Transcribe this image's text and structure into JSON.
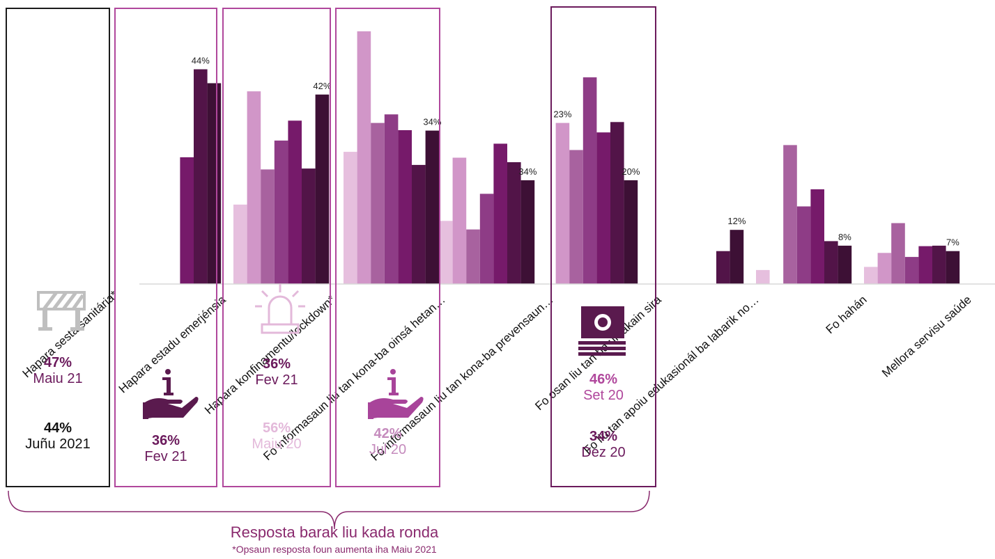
{
  "chart_data": {
    "type": "bar",
    "title": "",
    "xlabel": "",
    "ylabel": "",
    "ylim": [
      0,
      0.56
    ],
    "grid": false,
    "legend": "none",
    "categories": [
      "Hapara sesta sanitária*",
      "Hapara estadu emerjénsia",
      "Hapara konfinamentu/lockdown*",
      "Fo informasaun liu tan kona-ba oinsá hetan…",
      "Fo informasaun liu tan kona-ba prevensaun…",
      "Fo osan liu tan ba umakain sira",
      "Fo liu tan apoiu edukasionál ba labarik no…",
      "Fo hahán",
      "Mellora servisu saúde"
    ],
    "series": [
      {
        "values": [
          null,
          null,
          0.176,
          0.293,
          0.14,
          null,
          null,
          0.031,
          0.038
        ]
      },
      {
        "values": [
          null,
          null,
          0.427,
          0.56,
          0.28,
          0.357,
          null,
          null,
          0.069
        ]
      },
      {
        "values": [
          null,
          null,
          0.254,
          0.357,
          0.121,
          0.297,
          null,
          0.308,
          0.135
        ]
      },
      {
        "values": [
          null,
          null,
          0.318,
          0.376,
          0.2,
          0.458,
          null,
          0.172,
          0.06
        ]
      },
      {
        "values": [
          null,
          0.281,
          0.362,
          0.341,
          0.311,
          0.336,
          null,
          0.21,
          0.084
        ]
      },
      {
        "values": [
          null,
          0.476,
          0.256,
          0.264,
          0.27,
          0.359,
          0.073,
          0.095,
          0.085
        ]
      },
      {
        "values": [
          null,
          0.445,
          0.42,
          0.34,
          0.23,
          0.23,
          0.12,
          0.085,
          0.073
        ]
      }
    ],
    "data_labels": [
      "",
      "44%",
      "42%",
      "34%",
      "34%",
      "23%",
      "20%",
      "12%",
      "8%",
      "7%"
    ]
  },
  "annotations": {
    "sesta": {
      "pct1": "47%",
      "label1": "Maiu 21",
      "pct2": "44%",
      "label2": "Juñu 2021"
    },
    "emerjensia": {
      "pct": "36%",
      "label": "Fev 21"
    },
    "konfinamentu": {
      "pct1": "36%",
      "label1": "Fev 21",
      "pct2": "56%",
      "label2": "Maiu 20"
    },
    "informasaun": {
      "pct": "42%",
      "label": "Jul 20"
    },
    "osan": {
      "pct1": "46%",
      "label1": "Set 20",
      "pct2": "34%",
      "label2": "Dez 20"
    }
  },
  "footer": {
    "title": "Resposta barak liu kada ronda",
    "note": "*Opsaun resposta foun aumenta iha Maiu 2021"
  },
  "colors": [
    "#e6bfde",
    "#d196c8",
    "#a8629f",
    "#8e3c86",
    "#761a6a",
    "#521448",
    "#3d1035"
  ]
}
